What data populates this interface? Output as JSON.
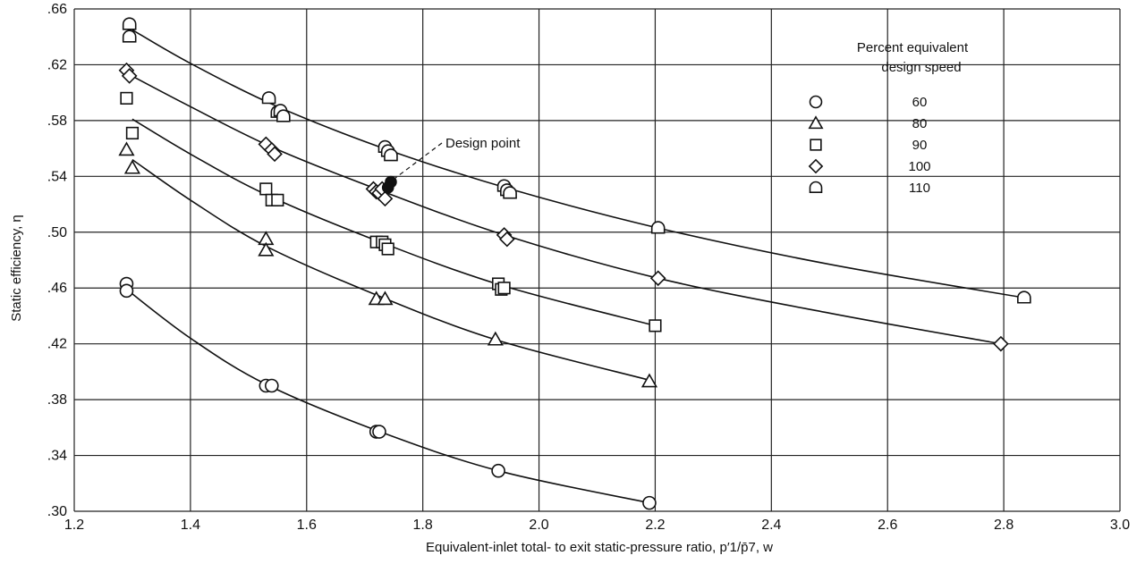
{
  "chart_data": {
    "type": "scatter",
    "xlabel": "Equivalent-inlet total- to exit static-pressure ratio, p′1/p̄7, w",
    "ylabel": "Static efficiency, η",
    "xlim": [
      1.2,
      3.0
    ],
    "ylim": [
      0.3,
      0.66
    ],
    "x_ticks": [
      1.2,
      1.4,
      1.6,
      1.8,
      2.0,
      2.2,
      2.4,
      2.6,
      2.8,
      3.0
    ],
    "x_tick_labels": [
      "1.2",
      "1.4",
      "1.6",
      "1.8",
      "2.0",
      "2.2",
      "2.4",
      "2.6",
      "2.8",
      "3.0"
    ],
    "y_ticks": [
      0.3,
      0.34,
      0.38,
      0.42,
      0.46,
      0.5,
      0.54,
      0.58,
      0.62,
      0.66
    ],
    "y_tick_labels": [
      ".30",
      ".34",
      ".38",
      ".42",
      ".46",
      ".50",
      ".54",
      ".58",
      ".62",
      ".66"
    ],
    "grid": true,
    "legend": {
      "title_lines": [
        "Percent equivalent",
        "design speed"
      ],
      "placement": "top-right"
    },
    "annotation": {
      "text": "Design point",
      "x": 1.745,
      "y": 0.535
    },
    "series": [
      {
        "name": "60",
        "marker": "circle",
        "points": [
          [
            1.29,
            0.463
          ],
          [
            1.29,
            0.458
          ],
          [
            1.53,
            0.39
          ],
          [
            1.54,
            0.39
          ],
          [
            1.72,
            0.357
          ],
          [
            1.725,
            0.357
          ],
          [
            1.93,
            0.329
          ],
          [
            2.19,
            0.306
          ]
        ],
        "curve": [
          [
            1.29,
            0.459
          ],
          [
            1.4,
            0.424
          ],
          [
            1.53,
            0.391
          ],
          [
            1.72,
            0.358
          ],
          [
            1.93,
            0.329
          ],
          [
            2.19,
            0.306
          ]
        ]
      },
      {
        "name": "80",
        "marker": "triangle",
        "points": [
          [
            1.29,
            0.559
          ],
          [
            1.3,
            0.546
          ],
          [
            1.53,
            0.495
          ],
          [
            1.53,
            0.487
          ],
          [
            1.72,
            0.452
          ],
          [
            1.735,
            0.452
          ],
          [
            1.925,
            0.423
          ],
          [
            2.19,
            0.393
          ]
        ],
        "curve": [
          [
            1.3,
            0.552
          ],
          [
            1.4,
            0.523
          ],
          [
            1.53,
            0.49
          ],
          [
            1.72,
            0.455
          ],
          [
            1.925,
            0.423
          ],
          [
            2.19,
            0.394
          ]
        ]
      },
      {
        "name": "90",
        "marker": "square",
        "points": [
          [
            1.29,
            0.596
          ],
          [
            1.3,
            0.571
          ],
          [
            1.53,
            0.531
          ],
          [
            1.54,
            0.523
          ],
          [
            1.55,
            0.523
          ],
          [
            1.72,
            0.493
          ],
          [
            1.73,
            0.493
          ],
          [
            1.735,
            0.491
          ],
          [
            1.74,
            0.488
          ],
          [
            1.93,
            0.463
          ],
          [
            1.935,
            0.459
          ],
          [
            1.94,
            0.46
          ],
          [
            2.2,
            0.433
          ]
        ],
        "curve": [
          [
            1.3,
            0.581
          ],
          [
            1.4,
            0.556
          ],
          [
            1.53,
            0.527
          ],
          [
            1.72,
            0.494
          ],
          [
            1.935,
            0.462
          ],
          [
            2.2,
            0.433
          ]
        ]
      },
      {
        "name": "100",
        "marker": "diamond",
        "points": [
          [
            1.29,
            0.616
          ],
          [
            1.295,
            0.612
          ],
          [
            1.53,
            0.563
          ],
          [
            1.54,
            0.559
          ],
          [
            1.545,
            0.556
          ],
          [
            1.715,
            0.531
          ],
          [
            1.72,
            0.529
          ],
          [
            1.725,
            0.528
          ],
          [
            1.73,
            0.531
          ],
          [
            1.735,
            0.524
          ],
          [
            1.94,
            0.498
          ],
          [
            1.945,
            0.495
          ],
          [
            2.205,
            0.467
          ],
          [
            2.795,
            0.42
          ]
        ],
        "curve": [
          [
            1.29,
            0.614
          ],
          [
            1.4,
            0.59
          ],
          [
            1.54,
            0.561
          ],
          [
            1.72,
            0.531
          ],
          [
            1.94,
            0.498
          ],
          [
            2.205,
            0.467
          ],
          [
            2.5,
            0.442
          ],
          [
            2.795,
            0.42
          ]
        ]
      },
      {
        "name": "110",
        "marker": "half-circle",
        "points": [
          [
            1.295,
            0.649
          ],
          [
            1.295,
            0.64
          ],
          [
            1.535,
            0.596
          ],
          [
            1.55,
            0.586
          ],
          [
            1.555,
            0.587
          ],
          [
            1.56,
            0.583
          ],
          [
            1.735,
            0.561
          ],
          [
            1.74,
            0.558
          ],
          [
            1.745,
            0.555
          ],
          [
            1.94,
            0.533
          ],
          [
            1.945,
            0.53
          ],
          [
            1.95,
            0.528
          ],
          [
            2.205,
            0.503
          ],
          [
            2.835,
            0.453
          ]
        ],
        "curve": [
          [
            1.3,
            0.645
          ],
          [
            1.4,
            0.621
          ],
          [
            1.55,
            0.59
          ],
          [
            1.74,
            0.559
          ],
          [
            1.95,
            0.531
          ],
          [
            2.205,
            0.503
          ],
          [
            2.5,
            0.477
          ],
          [
            2.835,
            0.453
          ]
        ]
      }
    ],
    "design_point": {
      "marker": "filled-circle",
      "points": [
        [
          1.745,
          0.536
        ],
        [
          1.74,
          0.532
        ]
      ]
    }
  }
}
